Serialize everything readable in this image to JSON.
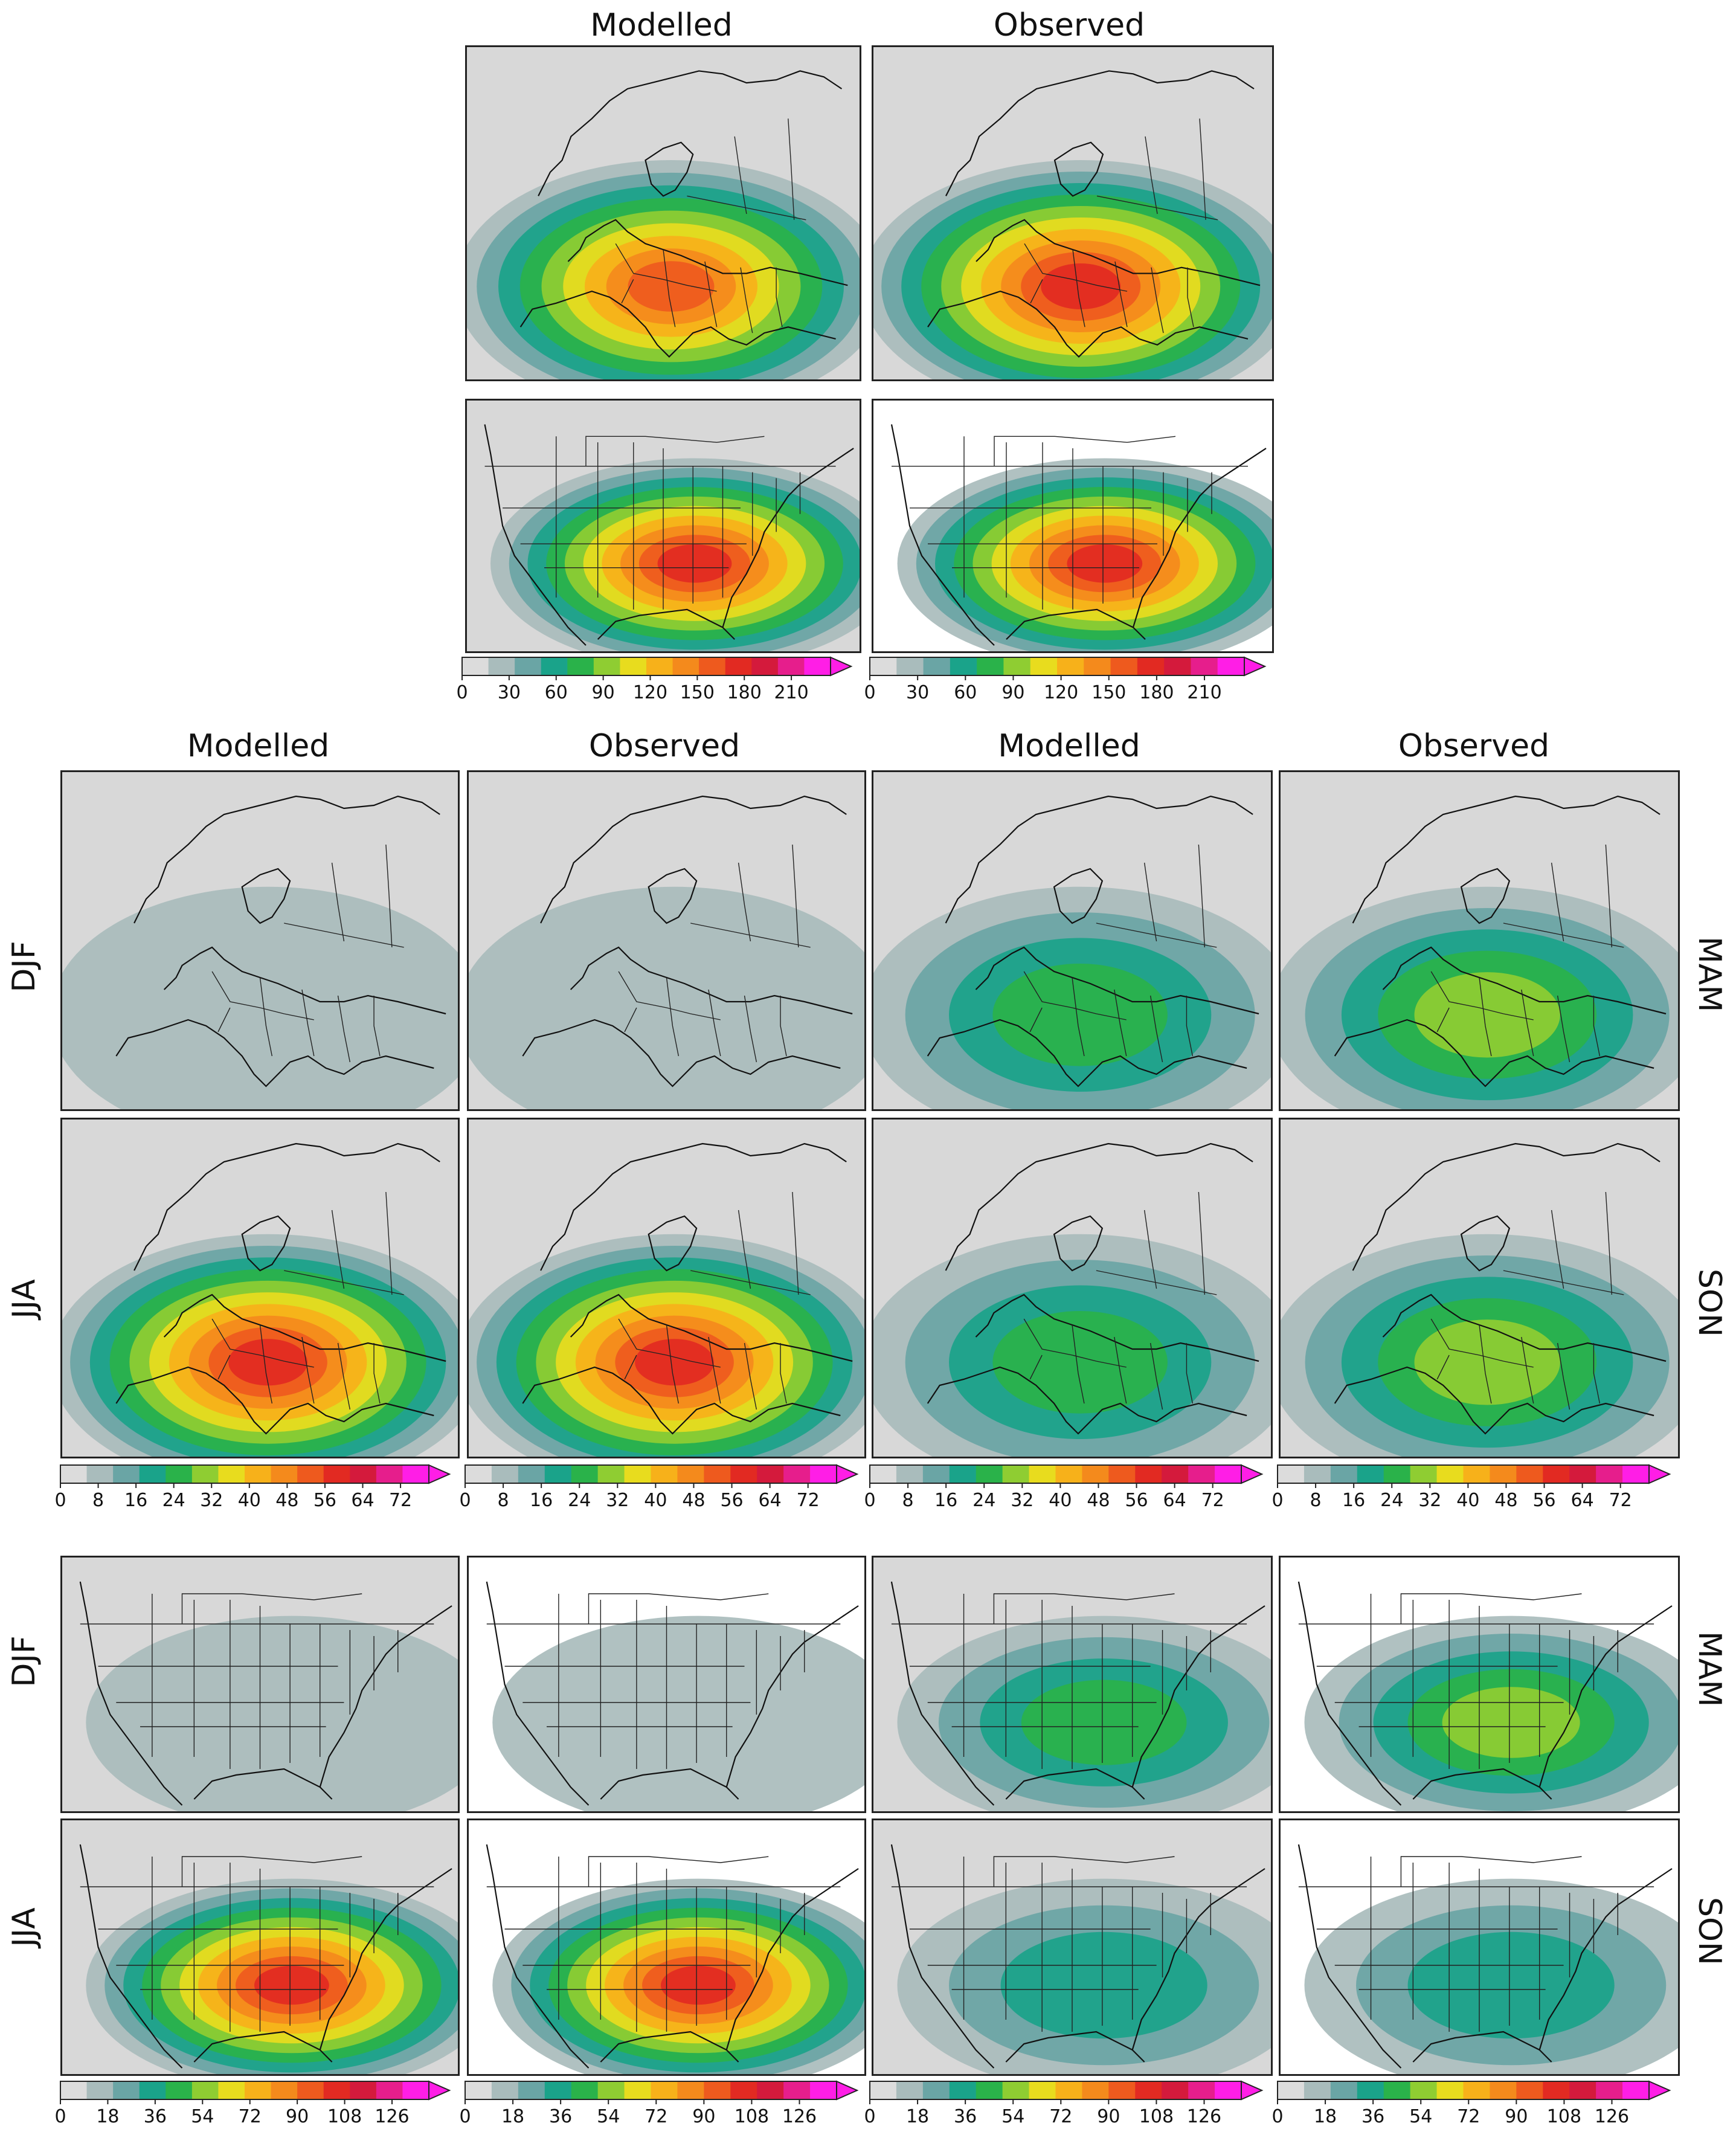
{
  "section1": {
    "col_titles": [
      "Modelled",
      "Observed"
    ],
    "colorbar_ticks": [
      "0",
      "30",
      "60",
      "90",
      "120",
      "150",
      "180",
      "210"
    ],
    "colorbar_max": 235
  },
  "section2": {
    "col_titles": [
      "Modelled",
      "Observed",
      "Modelled",
      "Observed"
    ],
    "row_labels_left": [
      "DJF",
      "JJA"
    ],
    "row_labels_right": [
      "MAM",
      "SON"
    ],
    "colorbar_ticks": [
      "0",
      "8",
      "16",
      "24",
      "32",
      "40",
      "48",
      "56",
      "64",
      "72"
    ],
    "colorbar_max": 78
  },
  "section3": {
    "row_labels_left": [
      "DJF",
      "JJA"
    ],
    "row_labels_right": [
      "MAM",
      "SON"
    ],
    "colorbar_ticks": [
      "0",
      "18",
      "36",
      "54",
      "72",
      "90",
      "108",
      "126"
    ],
    "colorbar_max": 140
  },
  "colors": {
    "palette": [
      "#dcdcdc",
      "#a9bcbc",
      "#6aa5a5",
      "#1aa38a",
      "#2ab24a",
      "#8fcd32",
      "#e8dc1e",
      "#f7b11a",
      "#f48a1c",
      "#ee5a1e",
      "#e22a22",
      "#d41a3c",
      "#e61e8c",
      "#ff1ee6"
    ],
    "ocean_grey": "#c4c4c4",
    "land_grey": "#d8d8d8",
    "border": "#222222"
  },
  "panels": {
    "europe_annual_modelled": {
      "intensity": 0.75
    },
    "europe_annual_observed": {
      "intensity": 0.8
    },
    "usa_annual_modelled": {
      "intensity": 0.85
    },
    "usa_annual_observed": {
      "intensity": 0.8
    },
    "eu_djf_modelled": {
      "intensity": 0.05
    },
    "eu_djf_observed": {
      "intensity": 0.06
    },
    "eu_mam_modelled": {
      "intensity": 0.3
    },
    "eu_mam_observed": {
      "intensity": 0.38
    },
    "eu_jja_modelled": {
      "intensity": 0.8
    },
    "eu_jja_observed": {
      "intensity": 0.85
    },
    "eu_son_modelled": {
      "intensity": 0.35
    },
    "eu_son_observed": {
      "intensity": 0.45
    },
    "us_djf_modelled": {
      "intensity": 0.12
    },
    "us_djf_observed": {
      "intensity": 0.1
    },
    "us_mam_modelled": {
      "intensity": 0.35
    },
    "us_mam_observed": {
      "intensity": 0.45
    },
    "us_jja_modelled": {
      "intensity": 0.8
    },
    "us_jja_observed": {
      "intensity": 0.85
    },
    "us_son_modelled": {
      "intensity": 0.22
    },
    "us_son_observed": {
      "intensity": 0.25
    }
  }
}
